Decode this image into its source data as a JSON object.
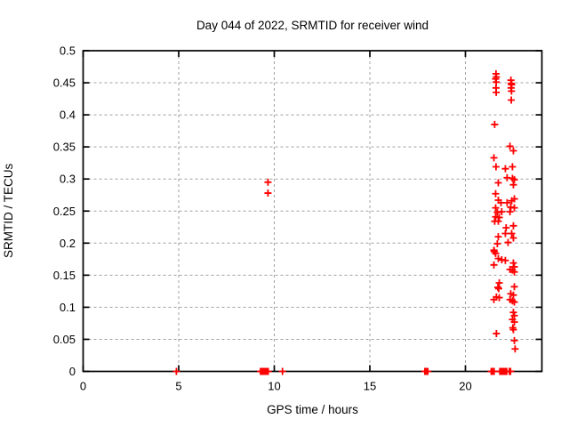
{
  "chart_data": {
    "type": "scatter",
    "title": "Day 044 of 2022, SRMTID for receiver wind",
    "xlabel": "GPS time / hours",
    "ylabel": "SRMTID / TECUs",
    "xlim": [
      0,
      24
    ],
    "ylim": [
      0,
      0.5
    ],
    "xticks": [
      0,
      5,
      10,
      15,
      20
    ],
    "yticks": [
      0,
      0.05,
      0.1,
      0.15,
      0.2,
      0.25,
      0.3,
      0.35,
      0.4,
      0.45,
      0.5
    ],
    "grid": true,
    "legend": "none",
    "marker": {
      "shape": "plus",
      "color": "#ff0000",
      "size": 8
    },
    "grid_color": "#a0a0a0",
    "border_color": "#000000",
    "points": [
      [
        4.88,
        0
      ],
      [
        9.28,
        0
      ],
      [
        9.33,
        0
      ],
      [
        9.38,
        0
      ],
      [
        9.43,
        0
      ],
      [
        9.48,
        0
      ],
      [
        9.53,
        0
      ],
      [
        9.58,
        0
      ],
      [
        9.63,
        0
      ],
      [
        9.68,
        0
      ],
      [
        10.43,
        0
      ],
      [
        17.88,
        0
      ],
      [
        17.93,
        0
      ],
      [
        17.98,
        0
      ],
      [
        18.03,
        0
      ],
      [
        21.35,
        0
      ],
      [
        21.42,
        0
      ],
      [
        21.5,
        0
      ],
      [
        21.8,
        0
      ],
      [
        21.86,
        0
      ],
      [
        21.92,
        0
      ],
      [
        21.98,
        0
      ],
      [
        22.04,
        0
      ],
      [
        22.1,
        0
      ],
      [
        22.16,
        0
      ],
      [
        22.3,
        0
      ],
      [
        22.36,
        0
      ],
      [
        9.67,
        0.295
      ],
      [
        9.67,
        0.278
      ],
      [
        21.6,
        0.464
      ],
      [
        21.62,
        0.459
      ],
      [
        21.58,
        0.456
      ],
      [
        21.61,
        0.451
      ],
      [
        21.6,
        0.442
      ],
      [
        21.61,
        0.435
      ],
      [
        22.38,
        0.454
      ],
      [
        22.4,
        0.449
      ],
      [
        22.42,
        0.447
      ],
      [
        22.39,
        0.442
      ],
      [
        22.41,
        0.437
      ],
      [
        22.4,
        0.423
      ],
      [
        21.53,
        0.385
      ],
      [
        22.33,
        0.351
      ],
      [
        22.51,
        0.344
      ],
      [
        21.49,
        0.333
      ],
      [
        21.6,
        0.319
      ],
      [
        22.09,
        0.316
      ],
      [
        22.46,
        0.319
      ],
      [
        21.72,
        0.294
      ],
      [
        22.18,
        0.302
      ],
      [
        22.46,
        0.301
      ],
      [
        22.56,
        0.299
      ],
      [
        22.51,
        0.291
      ],
      [
        21.58,
        0.277
      ],
      [
        21.72,
        0.267
      ],
      [
        21.86,
        0.263
      ],
      [
        22.18,
        0.263
      ],
      [
        22.42,
        0.266
      ],
      [
        22.56,
        0.269
      ],
      [
        21.58,
        0.255
      ],
      [
        22.37,
        0.256
      ],
      [
        22.56,
        0.255
      ],
      [
        21.67,
        0.248
      ],
      [
        21.9,
        0.249
      ],
      [
        22.33,
        0.249
      ],
      [
        21.58,
        0.241
      ],
      [
        21.77,
        0.24
      ],
      [
        21.53,
        0.234
      ],
      [
        21.72,
        0.234
      ],
      [
        22.13,
        0.224
      ],
      [
        22.51,
        0.227
      ],
      [
        22.09,
        0.215
      ],
      [
        22.42,
        0.215
      ],
      [
        21.72,
        0.21
      ],
      [
        22.51,
        0.208
      ],
      [
        22.23,
        0.201
      ],
      [
        21.67,
        0.199
      ],
      [
        21.49,
        0.189
      ],
      [
        21.51,
        0.187
      ],
      [
        21.58,
        0.184
      ],
      [
        21.72,
        0.176
      ],
      [
        21.9,
        0.174
      ],
      [
        22.09,
        0.173
      ],
      [
        21.49,
        0.166
      ],
      [
        22.51,
        0.169
      ],
      [
        22.56,
        0.163
      ],
      [
        22.33,
        0.159
      ],
      [
        22.46,
        0.158
      ],
      [
        22.56,
        0.155
      ],
      [
        21.77,
        0.138
      ],
      [
        21.7,
        0.131
      ],
      [
        21.74,
        0.129
      ],
      [
        22.56,
        0.132
      ],
      [
        22.37,
        0.121
      ],
      [
        22.51,
        0.119
      ],
      [
        21.62,
        0.116
      ],
      [
        21.77,
        0.115
      ],
      [
        21.49,
        0.112
      ],
      [
        22.33,
        0.112
      ],
      [
        22.46,
        0.11
      ],
      [
        22.56,
        0.108
      ],
      [
        22.51,
        0.092
      ],
      [
        22.56,
        0.087
      ],
      [
        22.46,
        0.081
      ],
      [
        22.56,
        0.077
      ],
      [
        22.48,
        0.068
      ],
      [
        22.51,
        0.065
      ],
      [
        21.62,
        0.059
      ],
      [
        22.56,
        0.048
      ],
      [
        22.6,
        0.035
      ]
    ]
  }
}
